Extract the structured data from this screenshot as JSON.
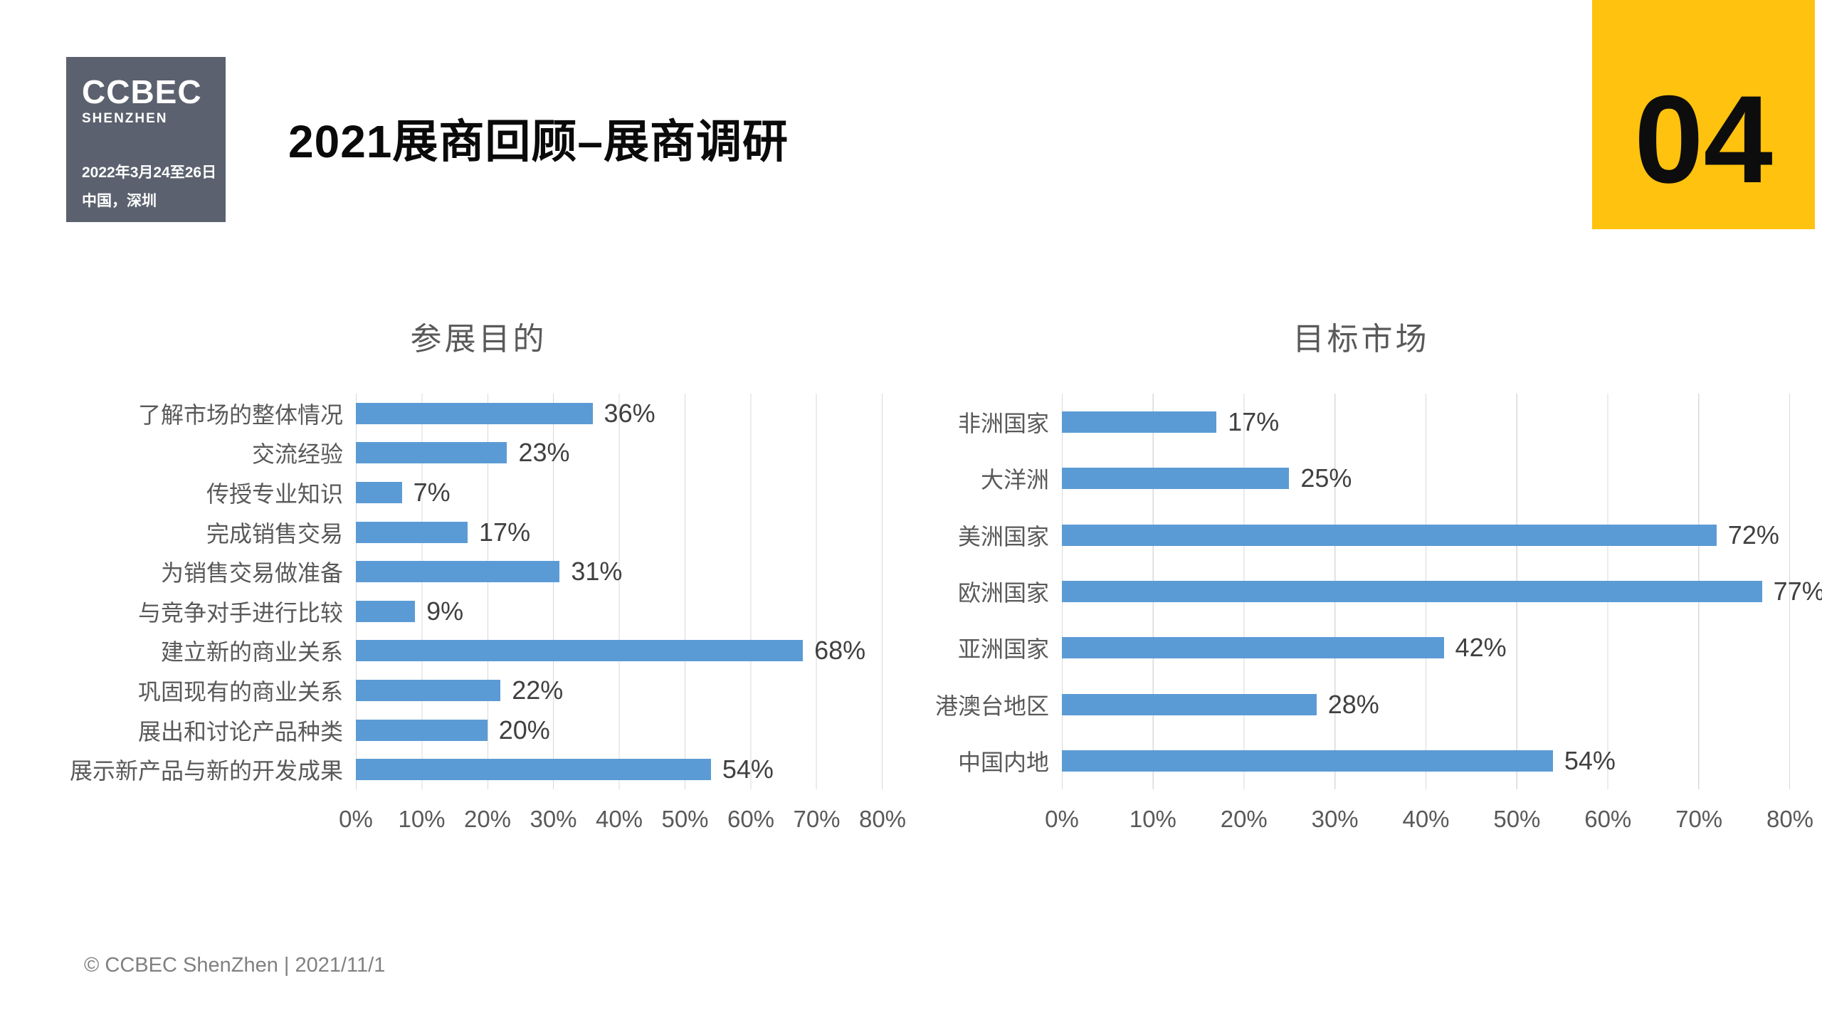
{
  "slide": {
    "title": "2021展商回顾–展商调研",
    "page_number": "04",
    "footer": "© CCBEC ShenZhen | 2021/11/1"
  },
  "logo": {
    "brand": "CCBEC",
    "city": "SHENZHEN",
    "date": "2022年3月24至26日",
    "location": "中国，深圳"
  },
  "colors": {
    "bar_fill": "#5B9BD5",
    "badge_bg": "#FFC20E",
    "logo_bg": "#5B616E",
    "grid_line": "#D9D9D9",
    "chart_text": "#595959",
    "value_text": "#404040",
    "footer_text": "#808080"
  },
  "chart_data": [
    {
      "type": "bar",
      "orientation": "horizontal",
      "title": "参展目的",
      "categories": [
        "了解市场的整体情况",
        "交流经验",
        "传授专业知识",
        "完成销售交易",
        "为销售交易做准备",
        "与竞争对手进行比较",
        "建立新的商业关系",
        "巩固现有的商业关系",
        "展出和讨论产品种类",
        "展示新产品与新的开发成果"
      ],
      "values": [
        36,
        23,
        7,
        17,
        31,
        9,
        68,
        22,
        20,
        54
      ],
      "unit": "%",
      "xlim": [
        0,
        80
      ],
      "x_ticks": [
        "0%",
        "10%",
        "20%",
        "30%",
        "40%",
        "50%",
        "60%",
        "70%",
        "80%"
      ],
      "grid": true,
      "legend": false,
      "data_labels": true
    },
    {
      "type": "bar",
      "orientation": "horizontal",
      "title": "目标市场",
      "categories": [
        "非洲国家",
        "大洋洲",
        "美洲国家",
        "欧洲国家",
        "亚洲国家",
        "港澳台地区",
        "中国内地"
      ],
      "values": [
        17,
        25,
        72,
        77,
        42,
        28,
        54
      ],
      "unit": "%",
      "xlim": [
        0,
        80
      ],
      "x_ticks": [
        "0%",
        "10%",
        "20%",
        "30%",
        "40%",
        "50%",
        "60%",
        "70%",
        "80%"
      ],
      "grid": true,
      "legend": false,
      "data_labels": true
    }
  ]
}
